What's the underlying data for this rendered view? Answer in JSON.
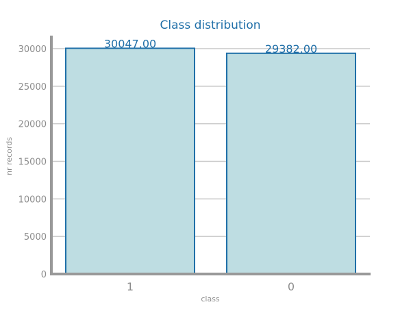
{
  "chart_data": {
    "type": "bar",
    "title": "Class distribution",
    "xlabel": "class",
    "ylabel": "nr records",
    "categories": [
      "1",
      "0"
    ],
    "values": [
      30047,
      29382
    ],
    "value_labels": [
      "30047.00",
      "29382.00"
    ],
    "ylim": [
      0,
      31700
    ],
    "yticks": [
      0,
      5000,
      10000,
      15000,
      20000,
      25000,
      30000
    ],
    "ytick_labels": [
      "0",
      "5000",
      "10000",
      "15000",
      "20000",
      "25000",
      "30000"
    ],
    "grid": "horizontal",
    "legend": "none"
  },
  "colors": {
    "title": "#1f6fa8",
    "bar_fill": "#bedde2",
    "bar_edge": "#1f6fa8",
    "value_label": "#1f6fa8",
    "axis": "#999999",
    "grid": "#c8c8c8",
    "tick_text": "#8c8c8c",
    "axis_label": "#8c8c8c"
  }
}
